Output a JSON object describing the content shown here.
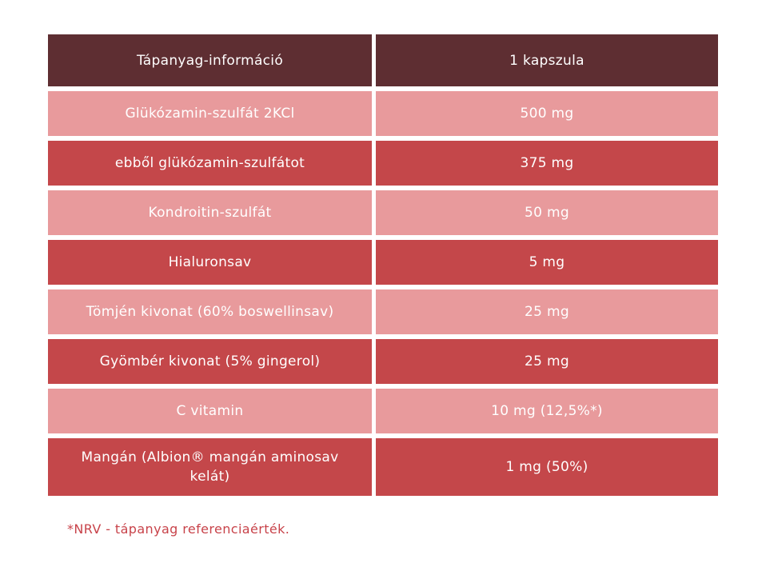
{
  "table": {
    "header": {
      "left": "Tápanyag-információ",
      "right": "1 kapszula"
    },
    "rows": [
      {
        "left": "Glükózamin-szulfát 2KCl",
        "right": "500 mg"
      },
      {
        "left": "ebből glükózamin-szulfátot",
        "right": "375 mg"
      },
      {
        "left": "Kondroitin-szulfát",
        "right": "50 mg"
      },
      {
        "left": "Hialuronsav",
        "right": "5 mg"
      },
      {
        "left": "Tömjén kivonat (60% boswellinsav)",
        "right": "25 mg"
      },
      {
        "left": "Gyömbér kivonat (5% gingerol)",
        "right": "25 mg"
      },
      {
        "left": "C vitamin",
        "right": "10 mg (12,5%*)"
      },
      {
        "left": "Mangán (Albion® mangán aminosav kelát)",
        "right": "1 mg (50%)"
      }
    ]
  },
  "footnote": "*NRV - tápanyag referenciaérték.",
  "colors": {
    "header": "#5e2e32",
    "light_row": "#e89a9c",
    "dark_row": "#c4474a",
    "footnote": "#c8434a"
  }
}
